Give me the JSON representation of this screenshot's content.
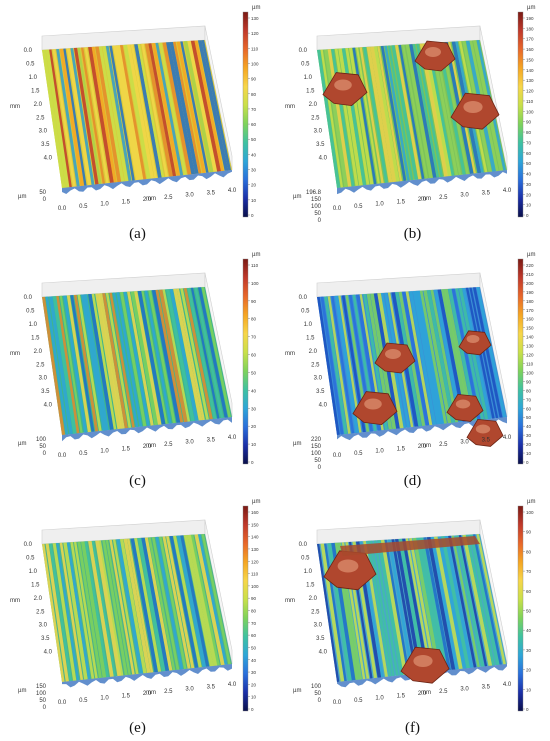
{
  "panels": [
    {
      "caption": "(a)",
      "left_ticks": [
        "0.0",
        "0.5",
        "1.0",
        "1.5",
        "2.0",
        "2.5",
        "3.0",
        "3.5",
        "4.0"
      ],
      "left_unit": "mm",
      "bottom_ticks": [
        "0.0",
        "0.5",
        "1.0",
        "1.5",
        "2.0",
        "2.5",
        "3.0",
        "3.5",
        "4.0"
      ],
      "bottom_unit": "mm",
      "z_unit": "µm",
      "z_ticks": [
        "50",
        "0"
      ],
      "scale_unit": "µm",
      "scale_ticks": [
        "130",
        "120",
        "110",
        "100",
        "90",
        "80",
        "70",
        "60",
        "50",
        "40",
        "30",
        "20",
        "10",
        "0"
      ],
      "style": "yellow-ridges",
      "particles": 0
    },
    {
      "caption": "(b)",
      "left_ticks": [
        "0.0",
        "0.5",
        "1.0",
        "1.5",
        "2.0",
        "2.5",
        "3.0",
        "3.5",
        "4.0"
      ],
      "left_unit": "mm",
      "bottom_ticks": [
        "0.0",
        "0.5",
        "1.0",
        "1.5",
        "2.0",
        "2.5",
        "3.0",
        "3.5",
        "4.0"
      ],
      "bottom_unit": "mm",
      "z_unit": "µm",
      "z_ticks": [
        "196.8",
        "150",
        "100",
        "50",
        "0"
      ],
      "scale_unit": "µm",
      "scale_ticks": [
        "190",
        "180",
        "170",
        "160",
        "150",
        "140",
        "130",
        "120",
        "110",
        "100",
        "90",
        "80",
        "70",
        "60",
        "50",
        "40",
        "30",
        "20",
        "10",
        "0"
      ],
      "style": "green-particles",
      "particles": 3
    },
    {
      "caption": "(c)",
      "left_ticks": [
        "0.0",
        "0.5",
        "1.0",
        "1.5",
        "2.0",
        "2.5",
        "3.0",
        "3.5",
        "4.0"
      ],
      "left_unit": "mm",
      "bottom_ticks": [
        "0.0",
        "0.5",
        "1.0",
        "1.5",
        "2.0",
        "2.5",
        "3.0",
        "3.5",
        "4.0"
      ],
      "bottom_unit": "mm",
      "z_unit": "µm",
      "z_ticks": [
        "100",
        "50",
        "0"
      ],
      "scale_unit": "µm",
      "scale_ticks": [
        "110",
        "100",
        "90",
        "80",
        "70",
        "60",
        "50",
        "40",
        "30",
        "20",
        "10",
        "0"
      ],
      "style": "mixed-ridges",
      "particles": 0
    },
    {
      "caption": "(d)",
      "left_ticks": [
        "0.0",
        "0.5",
        "1.0",
        "1.5",
        "2.0",
        "2.5",
        "3.0",
        "3.5",
        "4.0"
      ],
      "left_unit": "mm",
      "bottom_ticks": [
        "0.0",
        "0.5",
        "1.0",
        "1.5",
        "2.0",
        "2.5",
        "3.0",
        "3.5",
        "4.0"
      ],
      "bottom_unit": "mm",
      "z_unit": "µm",
      "z_ticks": [
        "220",
        "150",
        "100",
        "50",
        "0"
      ],
      "scale_unit": "µm",
      "scale_ticks": [
        "220",
        "210",
        "200",
        "190",
        "180",
        "170",
        "160",
        "150",
        "140",
        "130",
        "120",
        "110",
        "100",
        "90",
        "80",
        "70",
        "60",
        "50",
        "40",
        "30",
        "20",
        "10",
        "0"
      ],
      "style": "blue-particles",
      "particles": 5
    },
    {
      "caption": "(e)",
      "left_ticks": [
        "0.0",
        "0.5",
        "1.0",
        "1.5",
        "2.0",
        "2.5",
        "3.0",
        "3.5",
        "4.0"
      ],
      "left_unit": "mm",
      "bottom_ticks": [
        "0.0",
        "0.5",
        "1.0",
        "1.5",
        "2.0",
        "2.5",
        "3.0",
        "3.5",
        "4.0"
      ],
      "bottom_unit": "mm",
      "z_unit": "µm",
      "z_ticks": [
        "150",
        "100",
        "50",
        "0"
      ],
      "scale_unit": "µm",
      "scale_ticks": [
        "160",
        "150",
        "140",
        "130",
        "120",
        "110",
        "100",
        "90",
        "80",
        "70",
        "60",
        "50",
        "40",
        "30",
        "20",
        "10",
        "0"
      ],
      "style": "green-ridges",
      "particles": 0
    },
    {
      "caption": "(f)",
      "left_ticks": [
        "0.0",
        "0.5",
        "1.0",
        "1.5",
        "2.0",
        "2.5",
        "3.0",
        "3.5",
        "4.0"
      ],
      "left_unit": "mm",
      "bottom_ticks": [
        "0.0",
        "0.5",
        "1.0",
        "1.5",
        "2.0",
        "2.5",
        "3.0",
        "3.5",
        "4.0"
      ],
      "bottom_unit": "mm",
      "z_unit": "µm",
      "z_ticks": [
        "100",
        "50",
        "0"
      ],
      "scale_unit": "µm",
      "scale_ticks": [
        "100",
        "90",
        "80",
        "70",
        "60",
        "50",
        "40",
        "30",
        "20",
        "10",
        "0"
      ],
      "style": "ridge-top-deposit",
      "particles": 2
    }
  ],
  "colors": {
    "scale": [
      "#7a1a14",
      "#c0392b",
      "#e8672a",
      "#f5a623",
      "#f7d64a",
      "#c9e04a",
      "#7fd35a",
      "#3fc2a0",
      "#2ea6d8",
      "#2a6fdb",
      "#1b2fa8",
      "#0a0f4a"
    ],
    "floor": "#e6e6e6",
    "wall": "#efefef",
    "grid": "#cfcfcf"
  }
}
